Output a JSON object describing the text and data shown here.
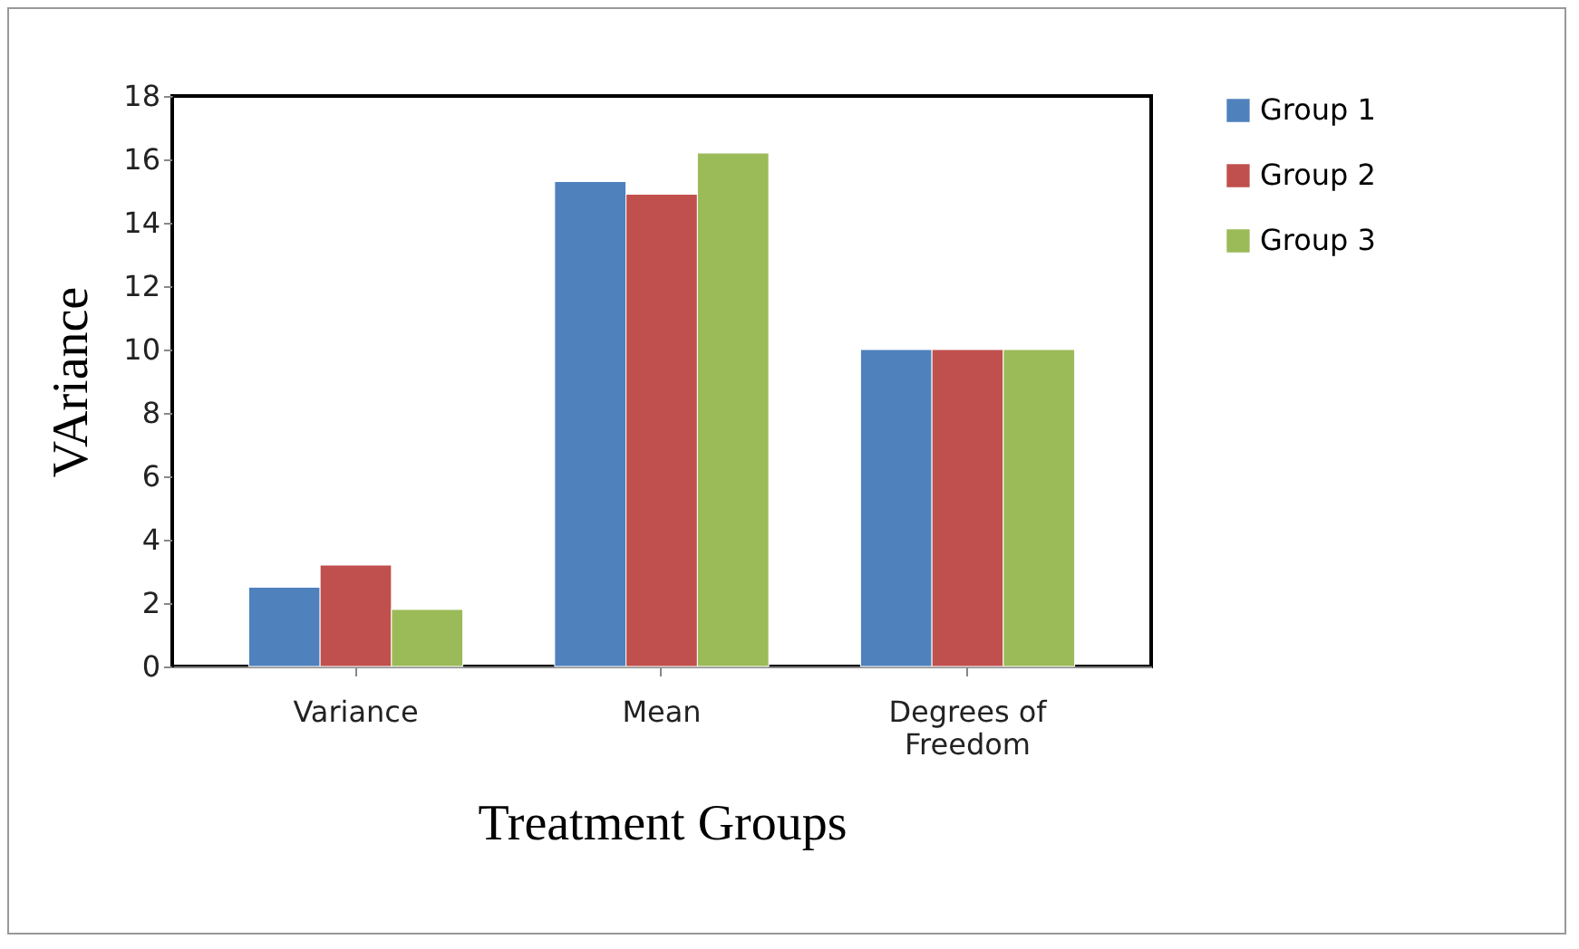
{
  "chart_data": {
    "type": "bar",
    "xlabel": "Treatment Groups",
    "ylabel": "VAriance",
    "categories": [
      "Variance",
      "Mean",
      "Degrees of Freedom"
    ],
    "series": [
      {
        "name": "Group 1",
        "color": "#4f81bd",
        "values": [
          2.5,
          15.3,
          10
        ]
      },
      {
        "name": "Group 2",
        "color": "#c0504d",
        "values": [
          3.2,
          14.9,
          10
        ]
      },
      {
        "name": "Group 3",
        "color": "#9bbb59",
        "values": [
          1.8,
          16.2,
          10
        ]
      }
    ],
    "ylim": [
      0,
      18
    ],
    "yticks": [
      0,
      2,
      4,
      6,
      8,
      10,
      12,
      14,
      16,
      18
    ],
    "grid": false,
    "legend": "right"
  }
}
